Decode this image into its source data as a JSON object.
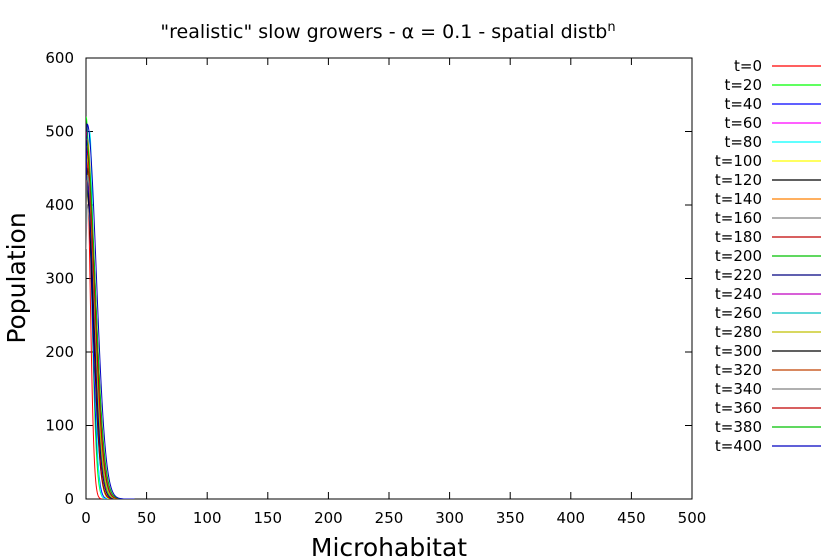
{
  "chart_data": {
    "type": "line",
    "title": "\"realistic\" slow growers - α = 0.1 - spatial distb",
    "title_sup": "n",
    "xlabel": "Microhabitat",
    "ylabel": "Population",
    "xlim": [
      0,
      500
    ],
    "ylim": [
      0,
      600
    ],
    "xticks": [
      0,
      50,
      100,
      150,
      200,
      250,
      300,
      350,
      400,
      450,
      500
    ],
    "yticks": [
      0,
      100,
      200,
      300,
      400,
      500,
      600
    ],
    "grid": false,
    "legend_position": "outside-right",
    "series": [
      {
        "name": "t=0",
        "color": "#ff0000",
        "peak": 500,
        "peak_x": 0,
        "width": 7
      },
      {
        "name": "t=20",
        "color": "#00ff00",
        "peak": 520,
        "peak_x": 0,
        "width": 9
      },
      {
        "name": "t=40",
        "color": "#0000ff",
        "peak": 470,
        "peak_x": 0,
        "width": 10
      },
      {
        "name": "t=60",
        "color": "#ff00ff",
        "peak": 430,
        "peak_x": 1,
        "width": 11
      },
      {
        "name": "t=80",
        "color": "#00ffff",
        "peak": 500,
        "peak_x": 3,
        "width": 7
      },
      {
        "name": "t=100",
        "color": "#ffff00",
        "peak": 450,
        "peak_x": 2,
        "width": 10
      },
      {
        "name": "t=120",
        "color": "#000000",
        "peak": 430,
        "peak_x": 0,
        "width": 12
      },
      {
        "name": "t=140",
        "color": "#ff8000",
        "peak": 490,
        "peak_x": 1,
        "width": 12
      },
      {
        "name": "t=160",
        "color": "#808080",
        "peak": 400,
        "peak_x": 1,
        "width": 13
      },
      {
        "name": "t=180",
        "color": "#c00000",
        "peak": 480,
        "peak_x": 0,
        "width": 12
      },
      {
        "name": "t=200",
        "color": "#00c000",
        "peak": 450,
        "peak_x": 1,
        "width": 13
      },
      {
        "name": "t=220",
        "color": "#000080",
        "peak": 440,
        "peak_x": 0,
        "width": 13
      },
      {
        "name": "t=240",
        "color": "#c000c0",
        "peak": 460,
        "peak_x": 1,
        "width": 14
      },
      {
        "name": "t=260",
        "color": "#00c0c0",
        "peak": 440,
        "peak_x": 1,
        "width": 14
      },
      {
        "name": "t=280",
        "color": "#c0c000",
        "peak": 470,
        "peak_x": 0,
        "width": 14
      },
      {
        "name": "t=300",
        "color": "#000000",
        "peak": 450,
        "peak_x": 1,
        "width": 15
      },
      {
        "name": "t=320",
        "color": "#c04000",
        "peak": 460,
        "peak_x": 0,
        "width": 15
      },
      {
        "name": "t=340",
        "color": "#808080",
        "peak": 440,
        "peak_x": 1,
        "width": 15
      },
      {
        "name": "t=360",
        "color": "#c00000",
        "peak": 480,
        "peak_x": 0,
        "width": 15
      },
      {
        "name": "t=380",
        "color": "#00c000",
        "peak": 490,
        "peak_x": 0,
        "width": 16
      },
      {
        "name": "t=400",
        "color": "#0000c0",
        "peak": 510,
        "peak_x": 1,
        "width": 16
      }
    ]
  }
}
